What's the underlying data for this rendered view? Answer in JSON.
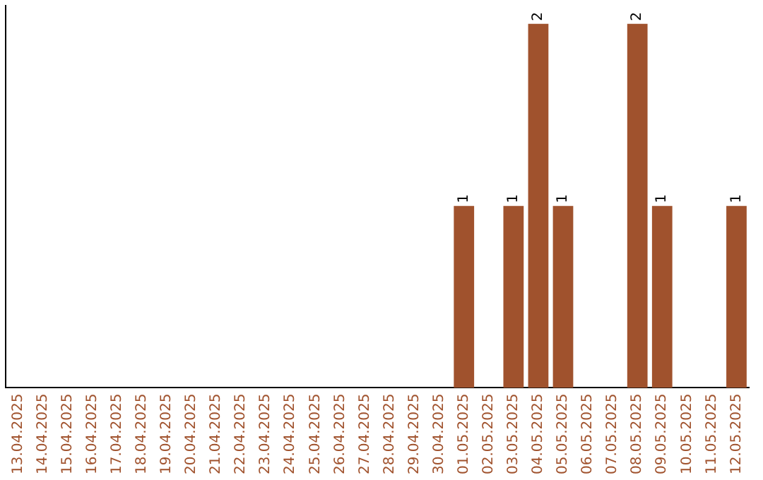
{
  "chart_data": {
    "type": "bar",
    "categories": [
      "13.04.2025",
      "14.04.2025",
      "15.04.2025",
      "16.04.2025",
      "17.04.2025",
      "18.04.2025",
      "19.04.2025",
      "20.04.2025",
      "21.04.2025",
      "22.04.2025",
      "23.04.2025",
      "24.04.2025",
      "25.04.2025",
      "26.04.2025",
      "27.04.2025",
      "28.04.2025",
      "29.04.2025",
      "30.04.2025",
      "01.05.2025",
      "02.05.2025",
      "03.05.2025",
      "04.05.2025",
      "05.05.2025",
      "06.05.2025",
      "07.05.2025",
      "08.05.2025",
      "09.05.2025",
      "10.05.2025",
      "11.05.2025",
      "12.05.2025"
    ],
    "values": [
      null,
      null,
      null,
      null,
      null,
      null,
      null,
      null,
      null,
      null,
      null,
      null,
      null,
      null,
      null,
      null,
      null,
      null,
      1,
      null,
      1,
      2,
      1,
      null,
      null,
      2,
      1,
      null,
      null,
      1
    ],
    "data_labels": true,
    "color": "#a0522d",
    "ylim": [
      0,
      2.1
    ],
    "tick_labels": "x",
    "grid": false,
    "legend": false
  }
}
